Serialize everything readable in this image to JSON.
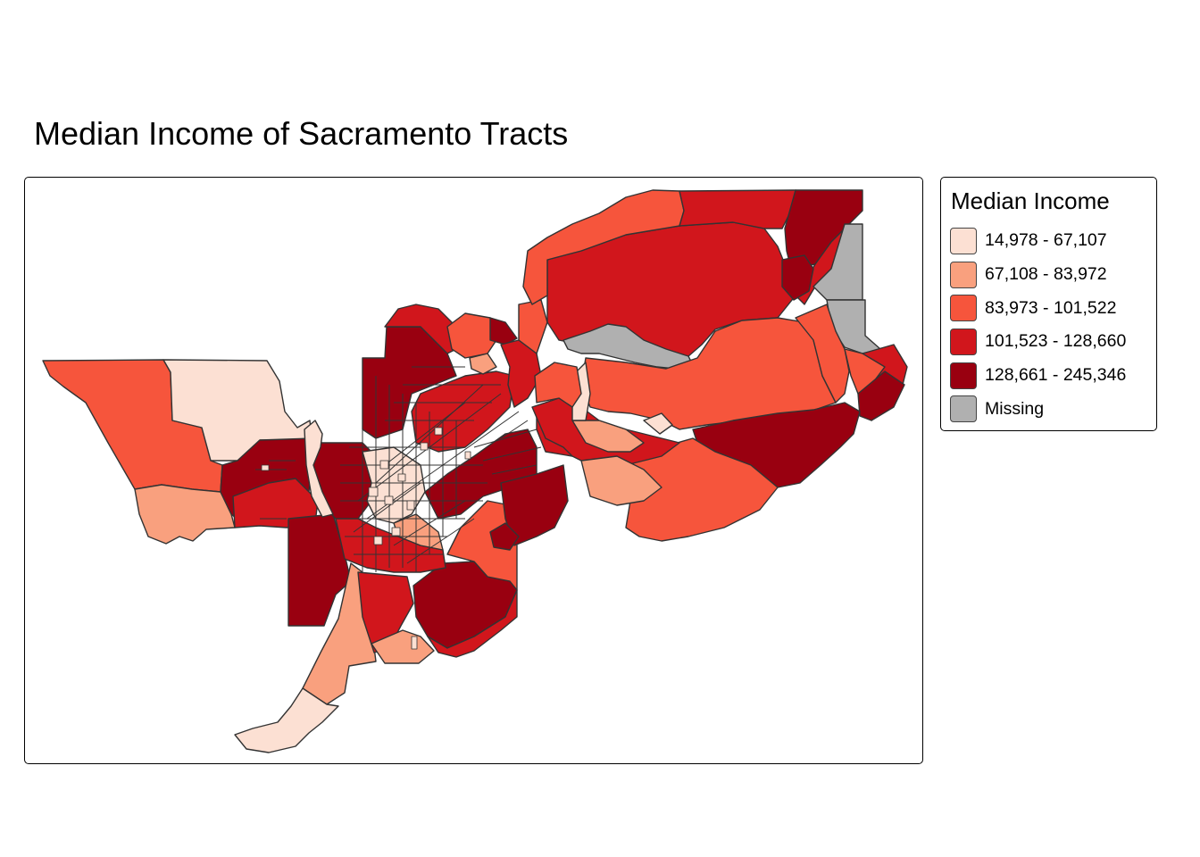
{
  "title": "Median Income of Sacramento Tracts",
  "legend": {
    "title": "Median Income",
    "items": [
      {
        "label": "14,978 - 67,107",
        "color": "#fce0d3"
      },
      {
        "label": "67,108 - 83,972",
        "color": "#f9a07e"
      },
      {
        "label": "83,973 - 101,522",
        "color": "#f6553c"
      },
      {
        "label": "101,523 - 128,660",
        "color": "#d1161c"
      },
      {
        "label": "128,661 - 245,346",
        "color": "#990010"
      },
      {
        "label": "Missing",
        "color": "#b0b0b0"
      }
    ]
  }
}
